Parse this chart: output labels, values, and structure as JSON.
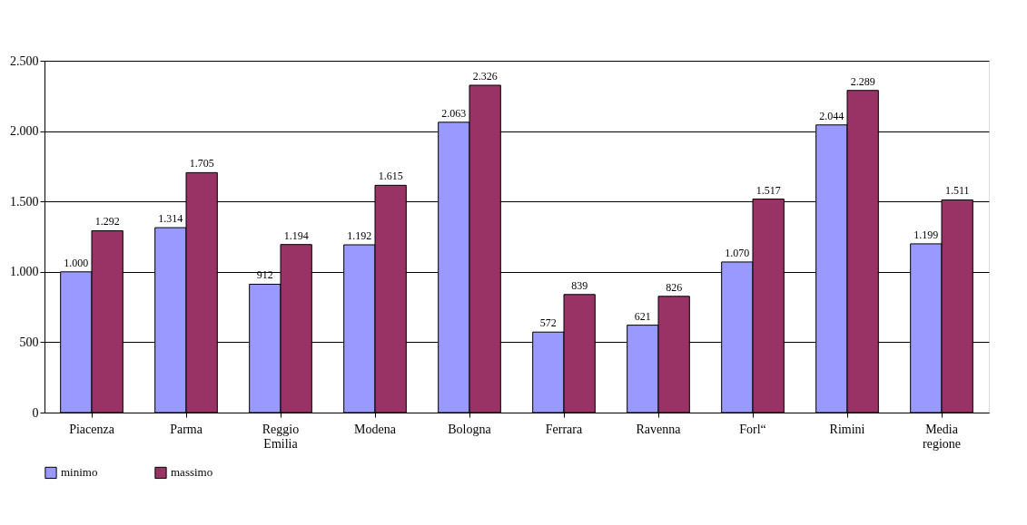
{
  "chart_data": {
    "type": "bar",
    "categories": [
      "Piacenza",
      "Parma",
      "Reggio Emilia",
      "Modena",
      "Bologna",
      "Ferrara",
      "Ravenna",
      "Forl“",
      "Rimini",
      "Media regione"
    ],
    "series": [
      {
        "name": "minimo",
        "color": "#9999ff",
        "values": [
          1000,
          1314,
          912,
          1192,
          2063,
          572,
          621,
          1070,
          2044,
          1199
        ],
        "value_labels": [
          "1.000",
          "1.314",
          "912",
          "1.192",
          "2.063",
          "572",
          "621",
          "1.070",
          "2.044",
          "1.199"
        ]
      },
      {
        "name": "massimo",
        "color": "#993366",
        "values": [
          1292,
          1705,
          1194,
          1615,
          2326,
          839,
          826,
          1517,
          2289,
          1511
        ],
        "value_labels": [
          "1.292",
          "1.705",
          "1.194",
          "1.615",
          "2.326",
          "839",
          "826",
          "1.517",
          "2.289",
          "1.511"
        ]
      }
    ],
    "ylim": [
      0,
      2500
    ],
    "yticks": [
      0,
      {
        "value": 500,
        "label": "500"
      },
      {
        "value": 1000,
        "label": "1.000"
      },
      {
        "value": 1500,
        "label": "1.500"
      },
      {
        "value": 2000,
        "label": "2.000"
      },
      {
        "value": 2500,
        "label": "2.500"
      }
    ],
    "grid": "y",
    "legend": "bottom"
  }
}
